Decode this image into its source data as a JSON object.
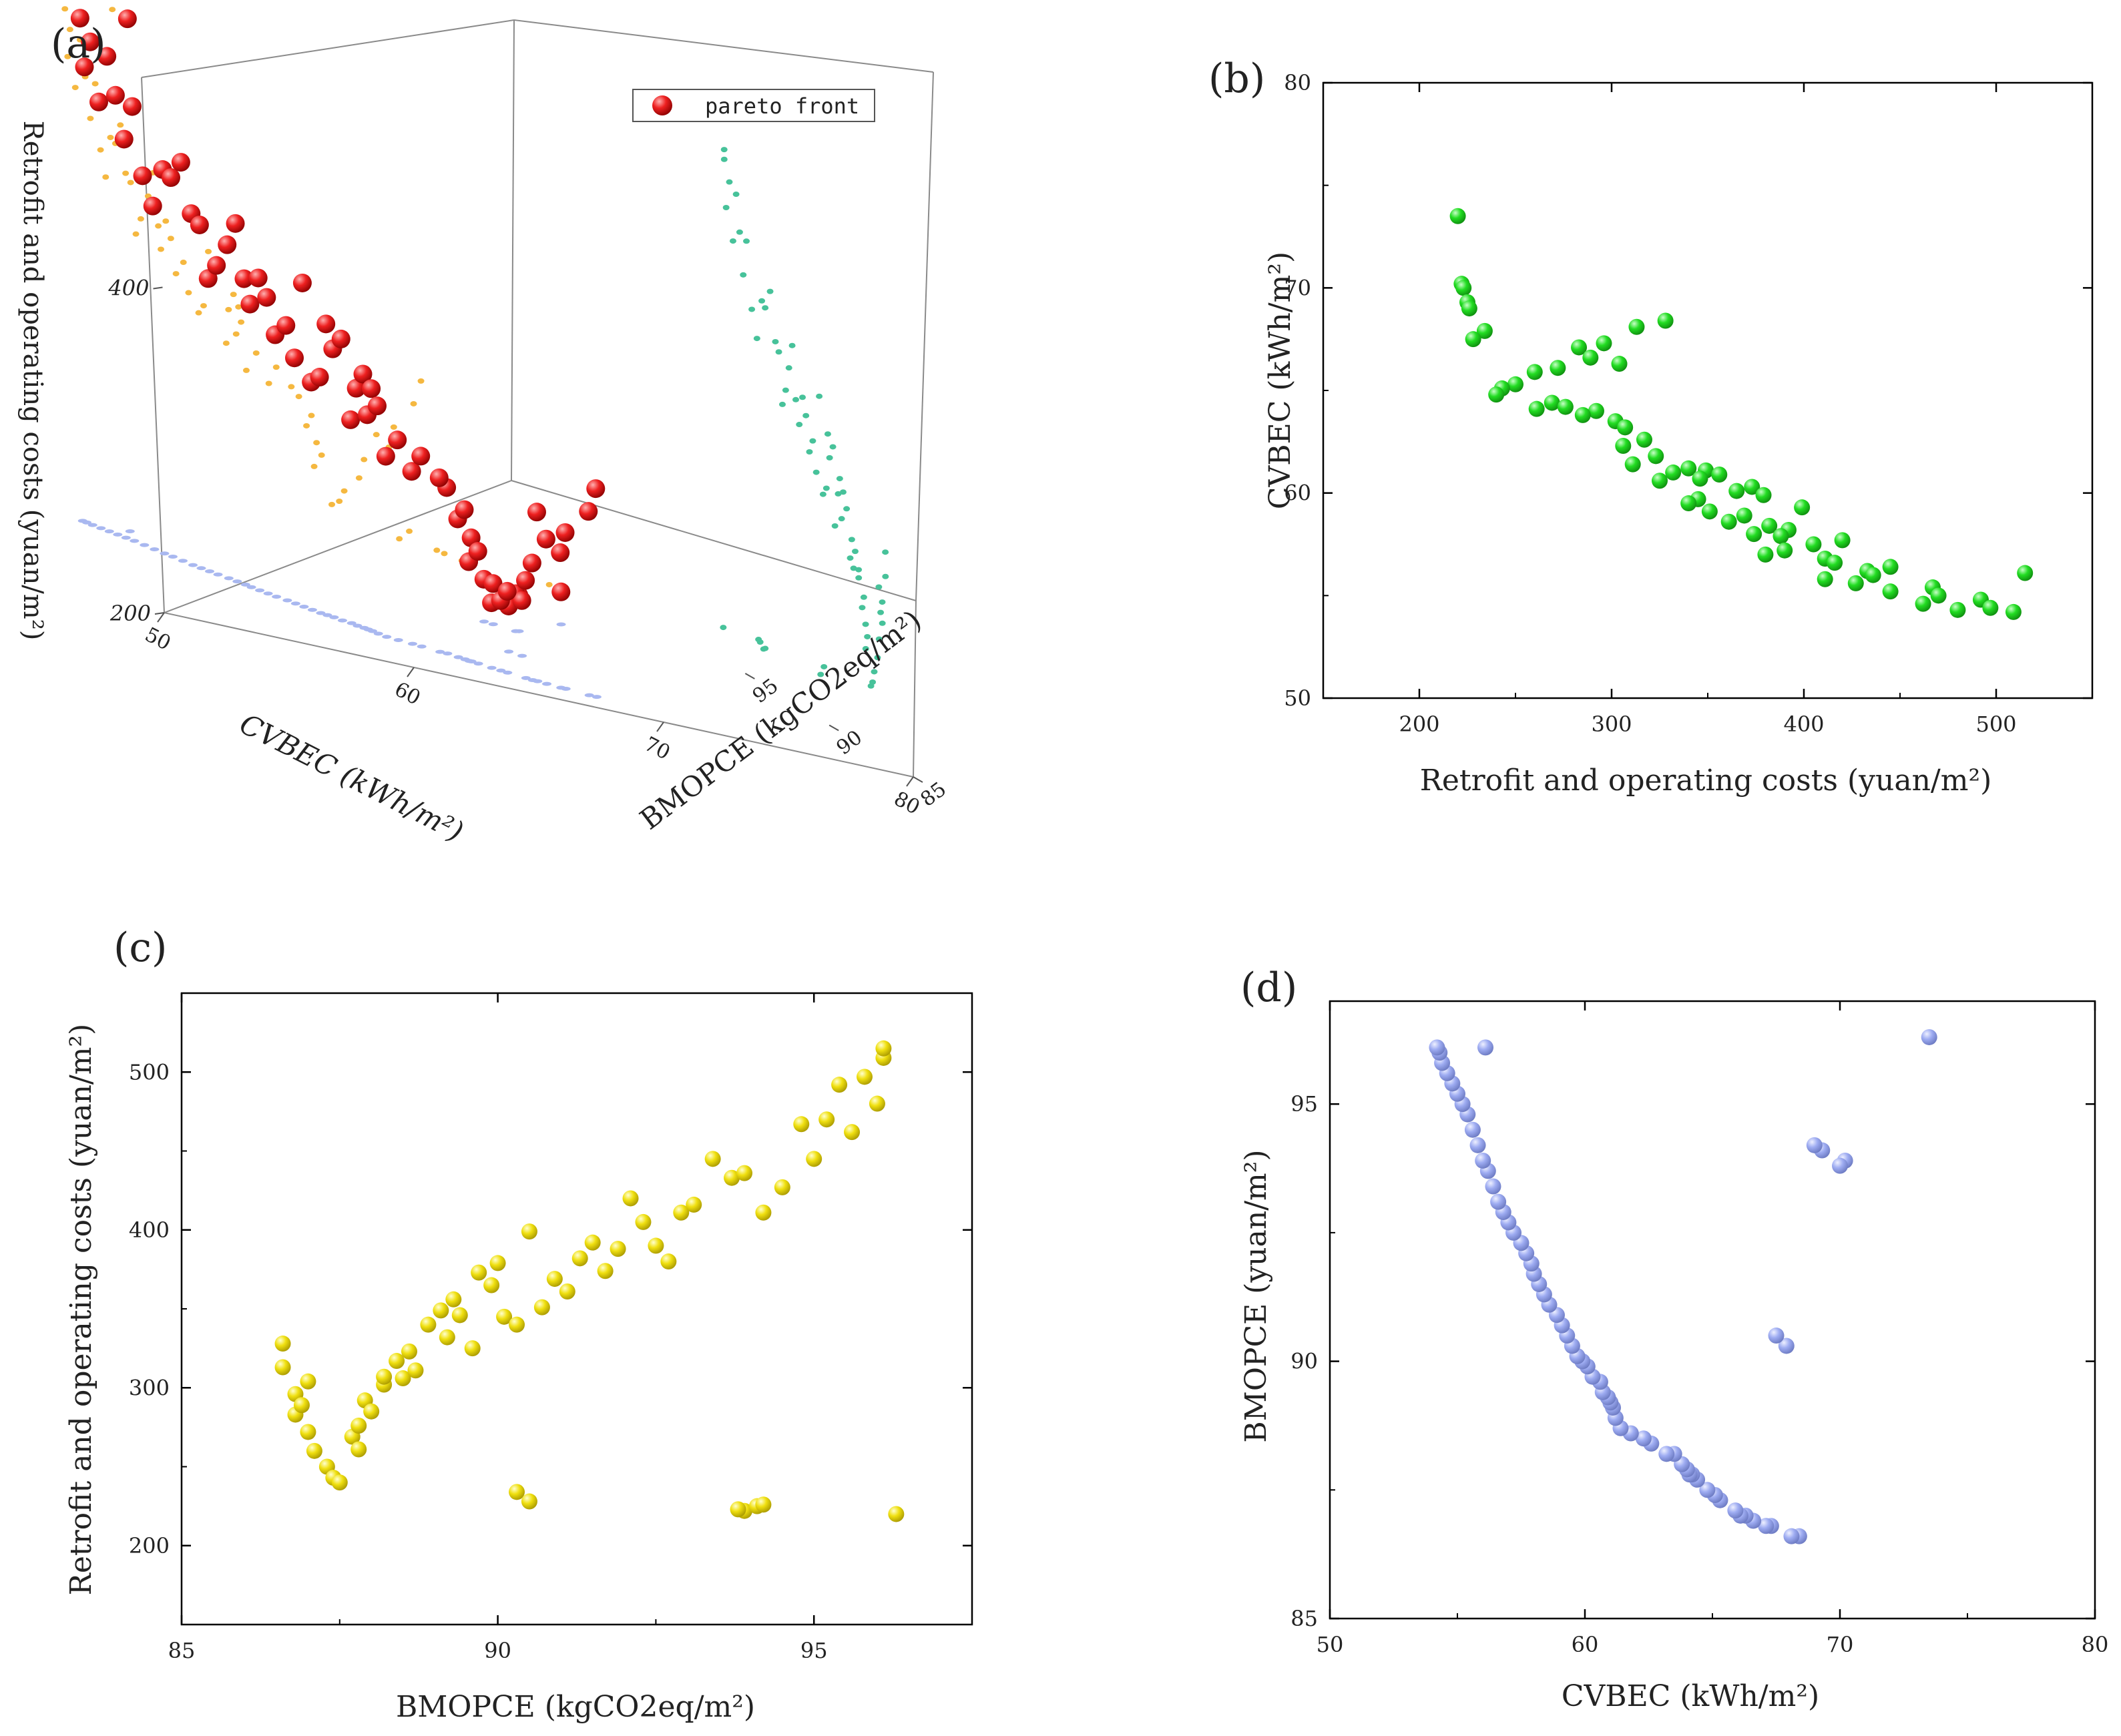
{
  "figure": {
    "panel_a_label": "(a)",
    "panel_b_label": "(b)",
    "panel_c_label": "(c)",
    "panel_d_label": "(d)"
  },
  "chart_data": [
    {
      "panel": "(a)",
      "type": "scatter",
      "projection": "3d",
      "axes": {
        "x": {
          "label": "CVBEC (kWh/m²)",
          "range": [
            50,
            80
          ],
          "ticks": [
            50,
            60,
            70,
            80
          ]
        },
        "y": {
          "label": "BMOPCE (kgCO2eq/m²)",
          "range": [
            85,
            97
          ],
          "ticks": [
            85,
            90,
            95
          ]
        },
        "z": {
          "label": "Retrofit and operating costs (yuan/m²)",
          "range": [
            200,
            520
          ],
          "ticks": [
            200,
            400
          ]
        }
      },
      "legend": {
        "entries": [
          "pareto front"
        ],
        "placement": "top-right"
      },
      "series": [
        {
          "name": "pareto front",
          "color": "#e41414",
          "marker": "sphere",
          "source": "shared_points"
        },
        {
          "role": "projection onto CVBEC–costs wall",
          "color": "#f5b840"
        },
        {
          "role": "projection onto BMOPCE–costs wall",
          "color": "#47c29a"
        },
        {
          "role": "projection onto floor",
          "color": "#a9b8f0"
        }
      ]
    },
    {
      "panel": "(b)",
      "type": "scatter",
      "xlabel": "Retrofit and operating costs (yuan/m²)",
      "ylabel": "CVBEC (kWh/m²)",
      "xlim": [
        150,
        550
      ],
      "ylim": [
        50,
        80
      ],
      "xticks": [
        200,
        300,
        400,
        500
      ],
      "yticks": [
        50,
        60,
        70,
        80
      ],
      "color": "#22dd22",
      "x_field": "cost",
      "y_field": "cvbec"
    },
    {
      "panel": "(c)",
      "type": "scatter",
      "xlabel": "BMOPCE (kgCO2eq/m²)",
      "ylabel": "Retrofit and operating costs (yuan/m²)",
      "xlim": [
        85,
        97.5
      ],
      "ylim": [
        150,
        550
      ],
      "xticks": [
        85,
        90,
        95
      ],
      "yticks": [
        200,
        300,
        400,
        500
      ],
      "color": "#f0e010",
      "x_field": "bmopce",
      "y_field": "cost"
    },
    {
      "panel": "(d)",
      "type": "scatter",
      "xlabel": "CVBEC (kWh/m²)",
      "ylabel": "BMOPCE (yuan/m²)",
      "xlim": [
        50,
        80
      ],
      "ylim": [
        85,
        97
      ],
      "xticks": [
        50,
        60,
        70,
        80
      ],
      "yticks": [
        85,
        90,
        95
      ],
      "color": "#9eacf2",
      "x_field": "cvbec",
      "y_field": "bmopce"
    }
  ],
  "shared_points": {
    "fields": [
      "cvbec",
      "bmopce",
      "cost"
    ],
    "rows": [
      [
        73.5,
        96.3,
        220
      ],
      [
        70.2,
        93.9,
        222
      ],
      [
        70.0,
        93.8,
        223
      ],
      [
        69.3,
        94.1,
        225
      ],
      [
        69.0,
        94.2,
        226
      ],
      [
        67.9,
        90.3,
        234
      ],
      [
        67.5,
        90.5,
        228
      ],
      [
        68.4,
        86.6,
        328
      ],
      [
        68.1,
        86.6,
        313
      ],
      [
        67.3,
        86.8,
        296
      ],
      [
        67.1,
        86.8,
        283
      ],
      [
        66.6,
        86.9,
        289
      ],
      [
        66.3,
        87.0,
        304
      ],
      [
        66.1,
        87.0,
        272
      ],
      [
        65.9,
        87.1,
        260
      ],
      [
        65.3,
        87.3,
        250
      ],
      [
        65.1,
        87.4,
        243
      ],
      [
        64.8,
        87.5,
        240
      ],
      [
        64.4,
        87.7,
        269
      ],
      [
        64.2,
        87.8,
        276
      ],
      [
        64.1,
        87.8,
        261
      ],
      [
        64.0,
        87.9,
        292
      ],
      [
        63.8,
        88.0,
        285
      ],
      [
        63.5,
        88.2,
        302
      ],
      [
        63.2,
        88.2,
        307
      ],
      [
        62.6,
        88.4,
        317
      ],
      [
        62.3,
        88.5,
        306
      ],
      [
        61.8,
        88.6,
        323
      ],
      [
        61.4,
        88.7,
        311
      ],
      [
        61.2,
        88.9,
        340
      ],
      [
        61.1,
        89.1,
        349
      ],
      [
        61.0,
        89.2,
        332
      ],
      [
        60.9,
        89.3,
        356
      ],
      [
        60.7,
        89.4,
        346
      ],
      [
        60.6,
        89.6,
        325
      ],
      [
        60.3,
        89.7,
        373
      ],
      [
        60.1,
        89.9,
        365
      ],
      [
        59.9,
        90.0,
        379
      ],
      [
        59.7,
        90.1,
        345
      ],
      [
        59.5,
        90.3,
        340
      ],
      [
        59.3,
        90.5,
        399
      ],
      [
        59.1,
        90.7,
        351
      ],
      [
        58.9,
        90.9,
        369
      ],
      [
        58.6,
        91.1,
        361
      ],
      [
        58.4,
        91.3,
        382
      ],
      [
        58.2,
        91.5,
        392
      ],
      [
        58.0,
        91.7,
        374
      ],
      [
        57.9,
        91.9,
        388
      ],
      [
        57.7,
        92.1,
        420
      ],
      [
        57.5,
        92.3,
        405
      ],
      [
        57.2,
        92.5,
        390
      ],
      [
        57.0,
        92.7,
        380
      ],
      [
        56.8,
        92.9,
        411
      ],
      [
        56.6,
        93.1,
        416
      ],
      [
        56.4,
        93.4,
        445
      ],
      [
        56.2,
        93.7,
        433
      ],
      [
        56.0,
        93.9,
        436
      ],
      [
        55.8,
        94.2,
        411
      ],
      [
        55.6,
        94.5,
        427
      ],
      [
        55.4,
        94.8,
        467
      ],
      [
        55.2,
        95.0,
        445
      ],
      [
        55.0,
        95.2,
        470
      ],
      [
        54.8,
        95.4,
        492
      ],
      [
        54.6,
        95.6,
        462
      ],
      [
        54.4,
        95.8,
        497
      ],
      [
        54.3,
        96.0,
        480
      ],
      [
        54.2,
        96.1,
        509
      ],
      [
        56.1,
        96.1,
        515
      ]
    ]
  }
}
